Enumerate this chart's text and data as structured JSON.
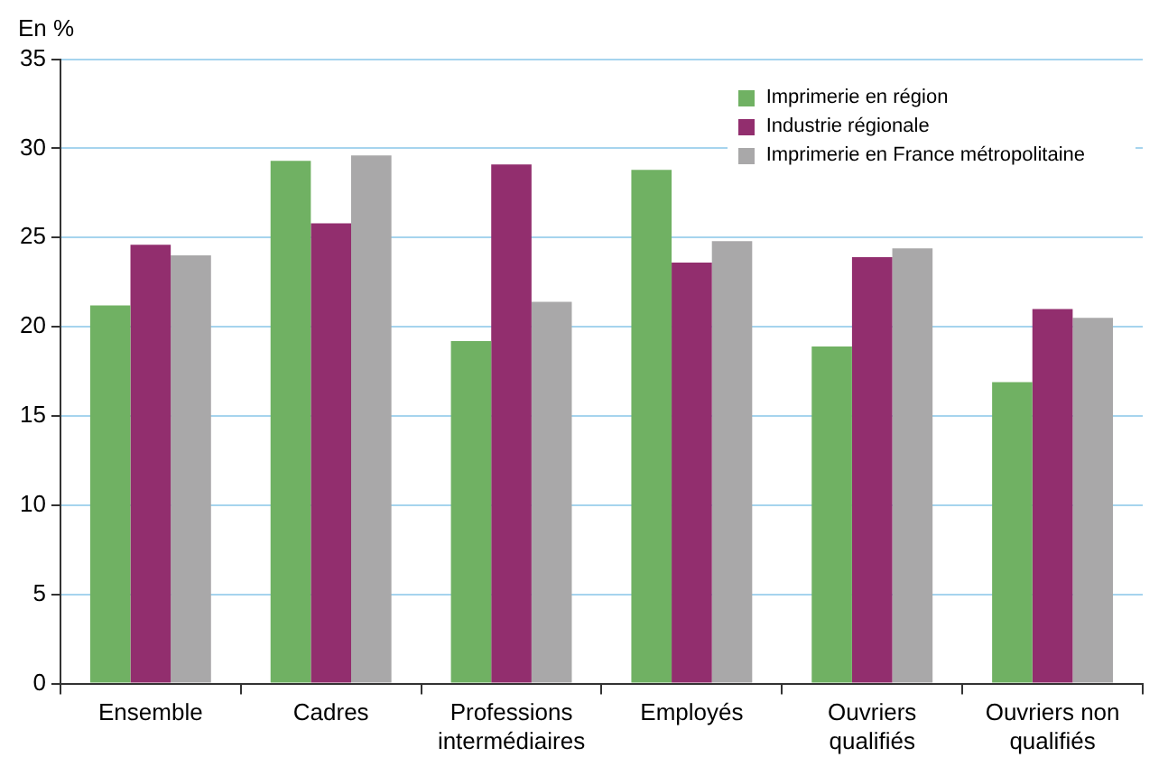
{
  "chart_data": {
    "type": "bar",
    "ylabel": "En %",
    "categories": [
      "Ensemble",
      "Cadres",
      "Professions intermédiaires",
      "Employés",
      "Ouvriers qualifiés",
      "Ouvriers non qualifiés"
    ],
    "series": [
      {
        "name": "Imprimerie en région",
        "color": "#70b163",
        "values": [
          21.2,
          29.3,
          19.2,
          28.8,
          18.9,
          16.9
        ]
      },
      {
        "name": "Industrie régionale",
        "color": "#922e6e",
        "values": [
          24.6,
          25.8,
          29.1,
          23.6,
          23.9,
          21.0
        ]
      },
      {
        "name": "Imprimerie en France métropolitaine",
        "color": "#a9a8a9",
        "values": [
          24.0,
          29.6,
          21.4,
          24.8,
          24.4,
          20.5
        ]
      }
    ],
    "ylim": [
      0,
      35
    ],
    "yticks": [
      0,
      5,
      10,
      15,
      20,
      25,
      30,
      35
    ],
    "grid": "y",
    "legend": "top right"
  }
}
